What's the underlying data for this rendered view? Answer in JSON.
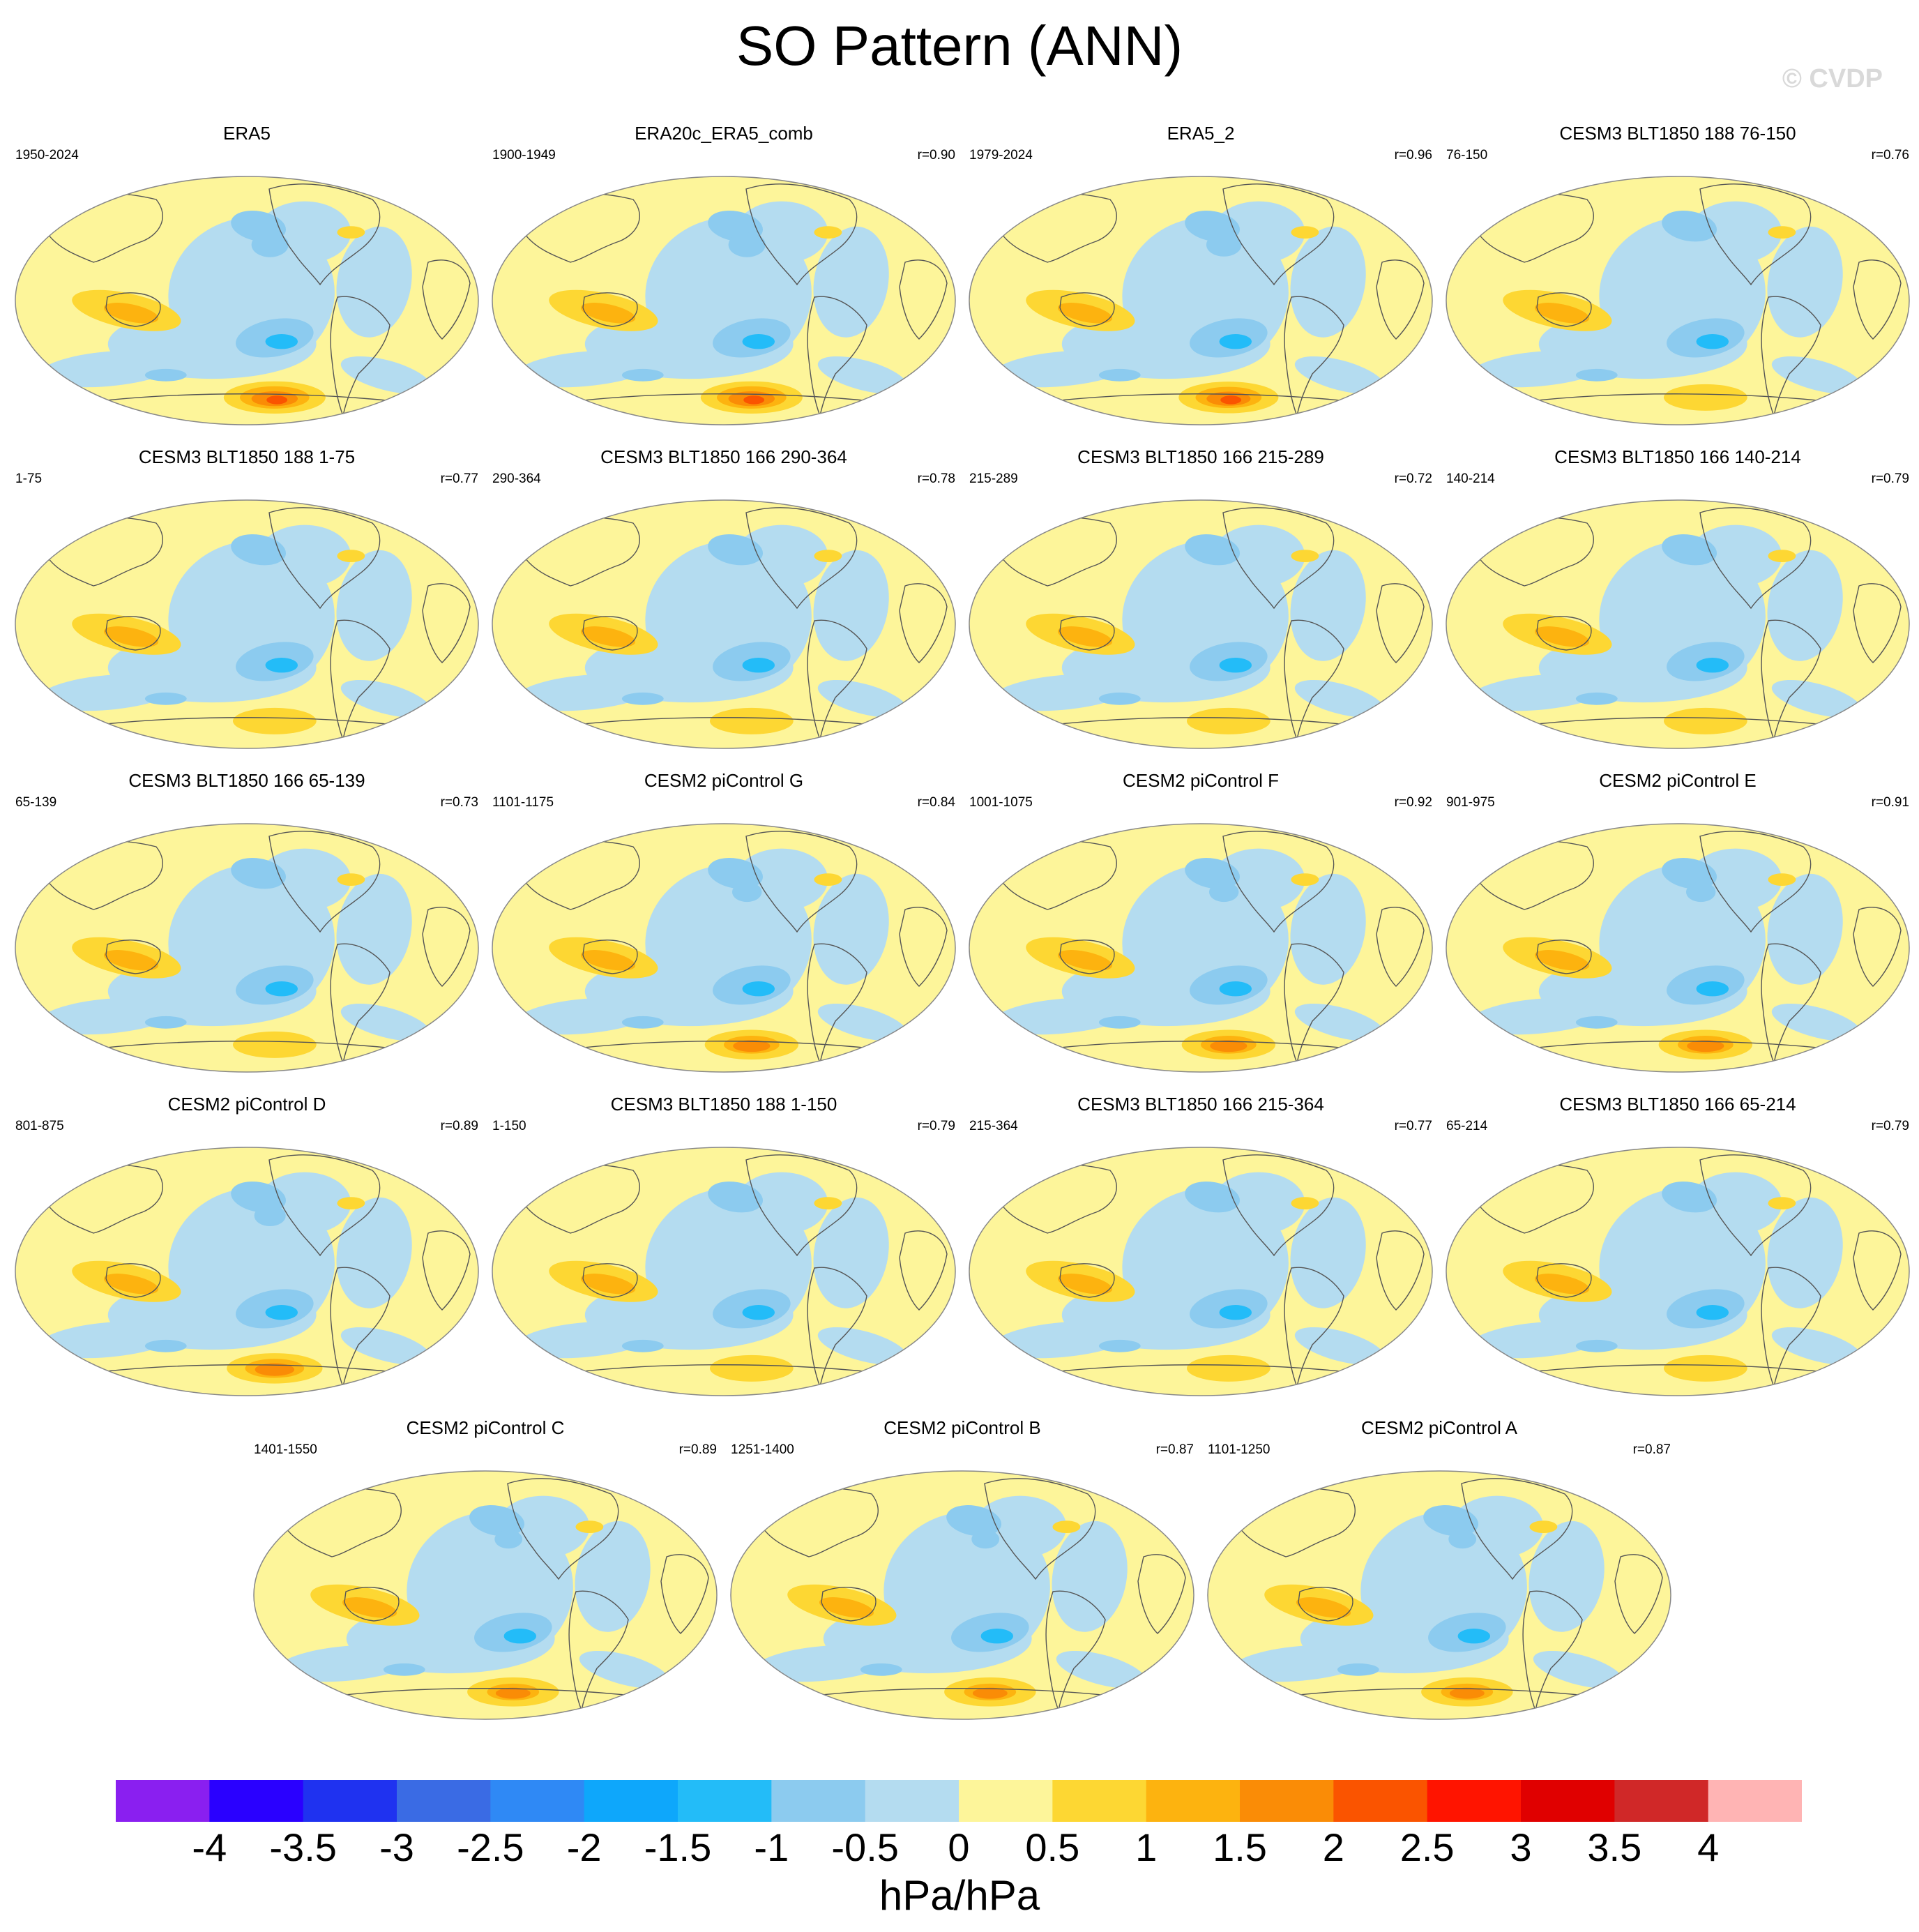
{
  "title": "SO Pattern (ANN)",
  "watermark": "© CVDP",
  "colors": {
    "land_outline": "#555555",
    "bin_neg0": "#b4dcf0",
    "bin_neg05": "#8ccbef",
    "bin_neg1": "#23bcf8",
    "bin_pos0": "#fdf59a",
    "bin_pos05": "#fdd733",
    "bin_pos1": "#fdb30f",
    "bin_pos15": "#fa8c06",
    "bin_pos2": "#fa5400"
  },
  "panels": [
    {
      "title": "ERA5",
      "period": "1950-2024",
      "corr": "",
      "strength": 1.0
    },
    {
      "title": "ERA20c_ERA5_comb",
      "period": "1900-1949",
      "corr": "r=0.90",
      "strength": 1.0
    },
    {
      "title": "ERA5_2",
      "period": "1979-2024",
      "corr": "r=0.96",
      "strength": 0.95
    },
    {
      "title": "CESM3 BLT1850 188 76-150",
      "period": "76-150",
      "corr": "r=0.76",
      "strength": 0.55
    },
    {
      "title": "CESM3 BLT1850 188 1-75",
      "period": "1-75",
      "corr": "r=0.77",
      "strength": 0.55
    },
    {
      "title": "CESM3 BLT1850 166 290-364",
      "period": "290-364",
      "corr": "r=0.78",
      "strength": 0.55
    },
    {
      "title": "CESM3 BLT1850 166 215-289",
      "period": "215-289",
      "corr": "r=0.72",
      "strength": 0.55
    },
    {
      "title": "CESM3 BLT1850 166 140-214",
      "period": "140-214",
      "corr": "r=0.79",
      "strength": 0.55
    },
    {
      "title": "CESM3 BLT1850 166 65-139",
      "period": "65-139",
      "corr": "r=0.73",
      "strength": 0.55
    },
    {
      "title": "CESM2 piControl G",
      "period": "1101-1175",
      "corr": "r=0.84",
      "strength": 0.8
    },
    {
      "title": "CESM2 piControl F",
      "period": "1001-1075",
      "corr": "r=0.92",
      "strength": 0.8
    },
    {
      "title": "CESM2 piControl E",
      "period": "901-975",
      "corr": "r=0.91",
      "strength": 0.8
    },
    {
      "title": "CESM2 piControl D",
      "period": "801-875",
      "corr": "r=0.89",
      "strength": 0.85
    },
    {
      "title": "CESM3 BLT1850 188 1-150",
      "period": "1-150",
      "corr": "r=0.79",
      "strength": 0.55
    },
    {
      "title": "CESM3 BLT1850 166 215-364",
      "period": "215-364",
      "corr": "r=0.77",
      "strength": 0.55
    },
    {
      "title": "CESM3 BLT1850 166 65-214",
      "period": "65-214",
      "corr": "r=0.79",
      "strength": 0.55
    },
    {
      "title": "CESM2 piControl C",
      "period": "1401-1550",
      "corr": "r=0.89",
      "strength": 0.75
    },
    {
      "title": "CESM2 piControl B",
      "period": "1251-1400",
      "corr": "r=0.87",
      "strength": 0.75
    },
    {
      "title": "CESM2 piControl A",
      "period": "1101-1250",
      "corr": "r=0.87",
      "strength": 0.75
    }
  ],
  "colorbar": {
    "colors": [
      "#8a1ff0",
      "#2a00ff",
      "#1f32f0",
      "#3a6be4",
      "#2f89f5",
      "#0ea7fb",
      "#23bcf8",
      "#8ccbef",
      "#b4dcf0",
      "#fdf59a",
      "#fdd733",
      "#fdb30f",
      "#fa8c06",
      "#fa5400",
      "#ff1400",
      "#e00000",
      "#d02828",
      "#ffb4b4"
    ],
    "labels": [
      "-4",
      "-3.5",
      "-3",
      "-2.5",
      "-2",
      "-1.5",
      "-1",
      "-0.5",
      "0",
      "0.5",
      "1",
      "1.5",
      "2",
      "2.5",
      "3",
      "3.5",
      "4"
    ],
    "units": "hPa/hPa"
  }
}
